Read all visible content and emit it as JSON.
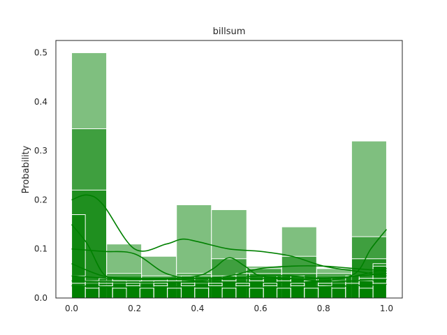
{
  "chart_data": {
    "type": "histogram",
    "title": "billsum",
    "xlabel": "",
    "ylabel": "Probability",
    "xlim": [
      -0.05,
      1.05
    ],
    "ylim": [
      0,
      0.525
    ],
    "xticks": [
      "0.0",
      "0.2",
      "0.4",
      "0.6",
      "0.8",
      "1.0"
    ],
    "yticks": [
      "0.0",
      "0.1",
      "0.2",
      "0.3",
      "0.4",
      "0.5"
    ],
    "xtick_values": [
      0,
      0.2,
      0.4,
      0.6,
      0.8,
      1.0
    ],
    "ytick_values": [
      0,
      0.1,
      0.2,
      0.3,
      0.4,
      0.5
    ],
    "grid": false,
    "color": "#008000",
    "series": [
      {
        "bins": [
          0,
          0.111,
          0.222,
          0.333,
          0.444,
          0.556,
          0.667,
          0.778,
          0.889,
          1.0
        ],
        "values": [
          0.5,
          0.11,
          0.085,
          0.19,
          0.18,
          0.065,
          0.145,
          0.06,
          0.32
        ],
        "kde_x": [
          0,
          0.05,
          0.1,
          0.2,
          0.3,
          0.35,
          0.4,
          0.5,
          0.6,
          0.7,
          0.8,
          0.9,
          0.95,
          1.0
        ],
        "kde_y": [
          0.2,
          0.21,
          0.19,
          0.1,
          0.11,
          0.12,
          0.115,
          0.1,
          0.095,
          0.085,
          0.065,
          0.055,
          0.05,
          0.045
        ]
      },
      {
        "bins": [
          0,
          0.111,
          0.222,
          0.333,
          0.444,
          0.556,
          0.667,
          0.778,
          0.889,
          1.0
        ],
        "values": [
          0.345,
          0.045,
          0.04,
          0.05,
          0.08,
          0.06,
          0.085,
          0.045,
          0.125
        ],
        "kde_x": [
          0,
          0.05,
          0.1,
          0.15,
          0.2,
          0.3,
          0.4,
          0.45,
          0.5,
          0.55,
          0.6,
          0.7,
          0.8,
          0.9,
          0.95,
          1.0
        ],
        "kde_y": [
          0.15,
          0.11,
          0.05,
          0.04,
          0.04,
          0.04,
          0.045,
          0.06,
          0.082,
          0.065,
          0.045,
          0.04,
          0.035,
          0.05,
          0.1,
          0.14
        ]
      },
      {
        "bins": [
          0,
          0.111,
          0.222,
          0.333,
          0.444,
          0.556,
          0.667,
          0.778,
          0.889,
          1.0
        ],
        "values": [
          0.22,
          0.05,
          0.045,
          0.045,
          0.045,
          0.05,
          0.05,
          0.05,
          0.08
        ],
        "kde_x": [
          0,
          0.1,
          0.2,
          0.3,
          0.4,
          0.5,
          0.6,
          0.7,
          0.8,
          0.9,
          1.0
        ],
        "kde_y": [
          0.1,
          0.095,
          0.09,
          0.05,
          0.04,
          0.045,
          0.06,
          0.065,
          0.065,
          0.06,
          0.055
        ]
      },
      {
        "bins": [
          0,
          0.0435,
          0.087,
          0.13,
          0.174,
          0.217,
          0.261,
          0.304,
          0.348,
          0.391,
          0.435,
          0.478,
          0.522,
          0.565,
          0.609,
          0.652,
          0.696,
          0.739,
          0.783,
          0.826,
          0.87,
          0.913,
          0.957,
          1.0
        ],
        "values": [
          0.17,
          0.035,
          0.035,
          0.035,
          0.03,
          0.03,
          0.035,
          0.035,
          0.035,
          0.035,
          0.03,
          0.035,
          0.05,
          0.035,
          0.04,
          0.045,
          0.04,
          0.035,
          0.03,
          0.035,
          0.035,
          0.04,
          0.07
        ],
        "kde_x": [
          0,
          0.1,
          0.2,
          0.3,
          0.4,
          0.5,
          0.6,
          0.7,
          0.8,
          0.9,
          1.0
        ],
        "kde_y": [
          0.07,
          0.045,
          0.04,
          0.04,
          0.035,
          0.04,
          0.045,
          0.045,
          0.04,
          0.045,
          0.06
        ]
      },
      {
        "bins": [
          0,
          0.0435,
          0.087,
          0.13,
          0.174,
          0.217,
          0.261,
          0.304,
          0.348,
          0.391,
          0.435,
          0.478,
          0.522,
          0.565,
          0.609,
          0.652,
          0.696,
          0.739,
          0.783,
          0.826,
          0.87,
          0.913,
          0.957,
          1.0
        ],
        "values": [
          0.045,
          0.03,
          0.04,
          0.03,
          0.035,
          0.03,
          0.035,
          0.04,
          0.045,
          0.03,
          0.04,
          0.045,
          0.03,
          0.04,
          0.045,
          0.04,
          0.045,
          0.035,
          0.04,
          0.03,
          0.045,
          0.04,
          0.065
        ],
        "kde_x": [
          0,
          0.2,
          0.4,
          0.6,
          0.8,
          1.0
        ],
        "kde_y": [
          0.045,
          0.038,
          0.04,
          0.04,
          0.04,
          0.05
        ]
      },
      {
        "bins": [
          0,
          0.0435,
          0.087,
          0.13,
          0.174,
          0.217,
          0.261,
          0.304,
          0.348,
          0.391,
          0.435,
          0.478,
          0.522,
          0.565,
          0.609,
          0.652,
          0.696,
          0.739,
          0.783,
          0.826,
          0.87,
          0.913,
          0.957,
          1.0
        ],
        "values": [
          0.03,
          0.035,
          0.03,
          0.035,
          0.03,
          0.035,
          0.03,
          0.035,
          0.03,
          0.035,
          0.03,
          0.035,
          0.03,
          0.035,
          0.03,
          0.035,
          0.03,
          0.035,
          0.03,
          0.035,
          0.03,
          0.035,
          0.04
        ],
        "kde_x": [
          0,
          0.2,
          0.4,
          0.6,
          0.8,
          1.0
        ],
        "kde_y": [
          0.035,
          0.032,
          0.033,
          0.032,
          0.033,
          0.038
        ]
      },
      {
        "bins": [
          0,
          0.0435,
          0.087,
          0.13,
          0.174,
          0.217,
          0.261,
          0.304,
          0.348,
          0.391,
          0.435,
          0.478,
          0.522,
          0.565,
          0.609,
          0.652,
          0.696,
          0.739,
          0.783,
          0.826,
          0.87,
          0.913,
          0.957,
          1.0
        ],
        "values": [
          0.025,
          0.02,
          0.025,
          0.02,
          0.025,
          0.02,
          0.025,
          0.02,
          0.025,
          0.02,
          0.025,
          0.02,
          0.025,
          0.02,
          0.025,
          0.02,
          0.025,
          0.02,
          0.025,
          0.02,
          0.025,
          0.02,
          0.03
        ],
        "kde_x": [
          0,
          0.2,
          0.4,
          0.6,
          0.8,
          1.0
        ],
        "kde_y": [
          0.025,
          0.022,
          0.023,
          0.022,
          0.023,
          0.028
        ]
      }
    ]
  }
}
